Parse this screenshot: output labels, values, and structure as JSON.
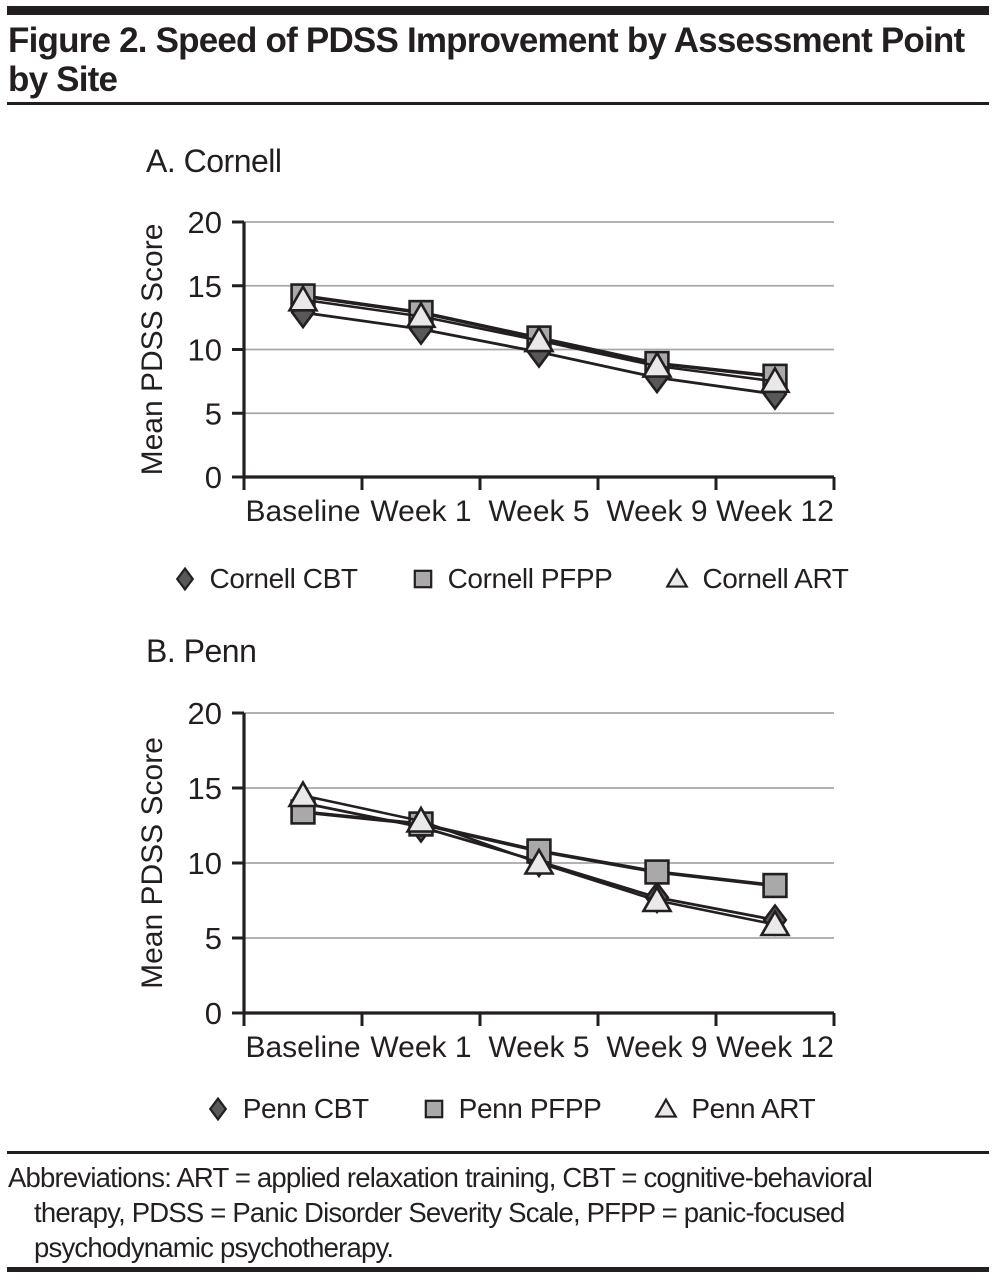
{
  "page": {
    "title_lines": [
      "Figure 2. Speed of PDSS Improvement by Assessment Point",
      "by Site"
    ],
    "footer_lines": [
      "Abbreviations: ART = applied relaxation training, CBT = cognitive-behavioral",
      "therapy, PDSS = Panic Disorder Severity Scale, PFPP = panic-focused",
      "psychodynamic psychotherapy."
    ]
  },
  "colors": {
    "text": "#231f20",
    "line": "#231f20",
    "gridline": "#a7a7a7",
    "diamond_fill": "#58585a",
    "square_fill": "#a9a9a9",
    "triangle_fill": "#e9e9e9"
  },
  "chart_data": [
    {
      "type": "line",
      "panel_label": "A. Cornell",
      "ylabel": "Mean PDSS Score",
      "ylim": [
        0,
        20
      ],
      "yticks": [
        0,
        5,
        10,
        15,
        20
      ],
      "grid": true,
      "legend_position": "bottom",
      "categories": [
        "Baseline",
        "Week 1",
        "Week 5",
        "Week 9",
        "Week 12"
      ],
      "series": [
        {
          "name": "Cornell CBT",
          "marker": "diamond",
          "values": [
            12.9,
            11.6,
            9.8,
            7.8,
            6.5
          ]
        },
        {
          "name": "Cornell PFPP",
          "marker": "square",
          "values": [
            14.2,
            12.9,
            10.9,
            8.9,
            7.9
          ]
        },
        {
          "name": "Cornell ART",
          "marker": "triangle",
          "values": [
            13.9,
            12.6,
            10.7,
            8.7,
            7.5
          ]
        }
      ]
    },
    {
      "type": "line",
      "panel_label": "B. Penn",
      "ylabel": "Mean PDSS Score",
      "ylim": [
        0,
        20
      ],
      "yticks": [
        0,
        5,
        10,
        15,
        20
      ],
      "grid": true,
      "legend_position": "bottom",
      "categories": [
        "Baseline",
        "Week 1",
        "Week 5",
        "Week 9",
        "Week 12"
      ],
      "series": [
        {
          "name": "Penn CBT",
          "marker": "diamond",
          "values": [
            14.0,
            12.4,
            10.1,
            7.7,
            6.2
          ]
        },
        {
          "name": "Penn PFPP",
          "marker": "square",
          "values": [
            13.4,
            12.6,
            10.8,
            9.4,
            8.5
          ]
        },
        {
          "name": "Penn ART",
          "marker": "triangle",
          "values": [
            14.5,
            12.8,
            10.0,
            7.5,
            5.9
          ]
        }
      ]
    }
  ]
}
